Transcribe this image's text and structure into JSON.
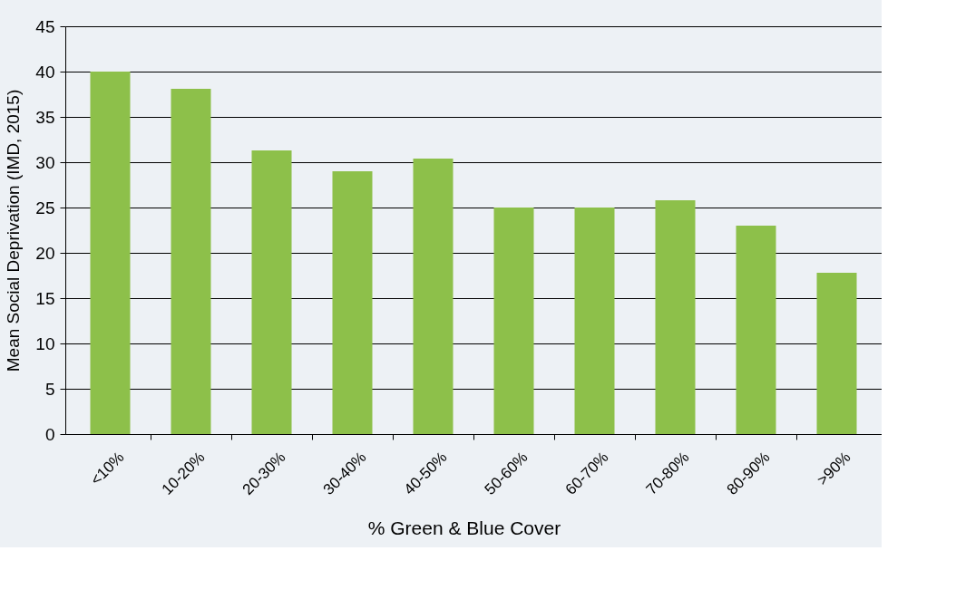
{
  "chart_data": {
    "type": "bar",
    "xlabel": "% Green & Blue Cover",
    "ylabel": "Mean Social Deprivation (IMD, 2015)",
    "categories": [
      "<10%",
      "10-20%",
      "20-30%",
      "30-40%",
      "40-50%",
      "50-60%",
      "60-70%",
      "70-80%",
      "80-90%",
      ">90%"
    ],
    "values": [
      40.0,
      38.1,
      31.3,
      29.0,
      30.4,
      25.0,
      25.0,
      25.8,
      23.0,
      17.8
    ],
    "color": "#8dc04a",
    "ylim": [
      0,
      45
    ],
    "yticks": [
      0,
      5,
      10,
      15,
      20,
      25,
      30,
      35,
      40,
      45
    ],
    "grid": "y"
  }
}
